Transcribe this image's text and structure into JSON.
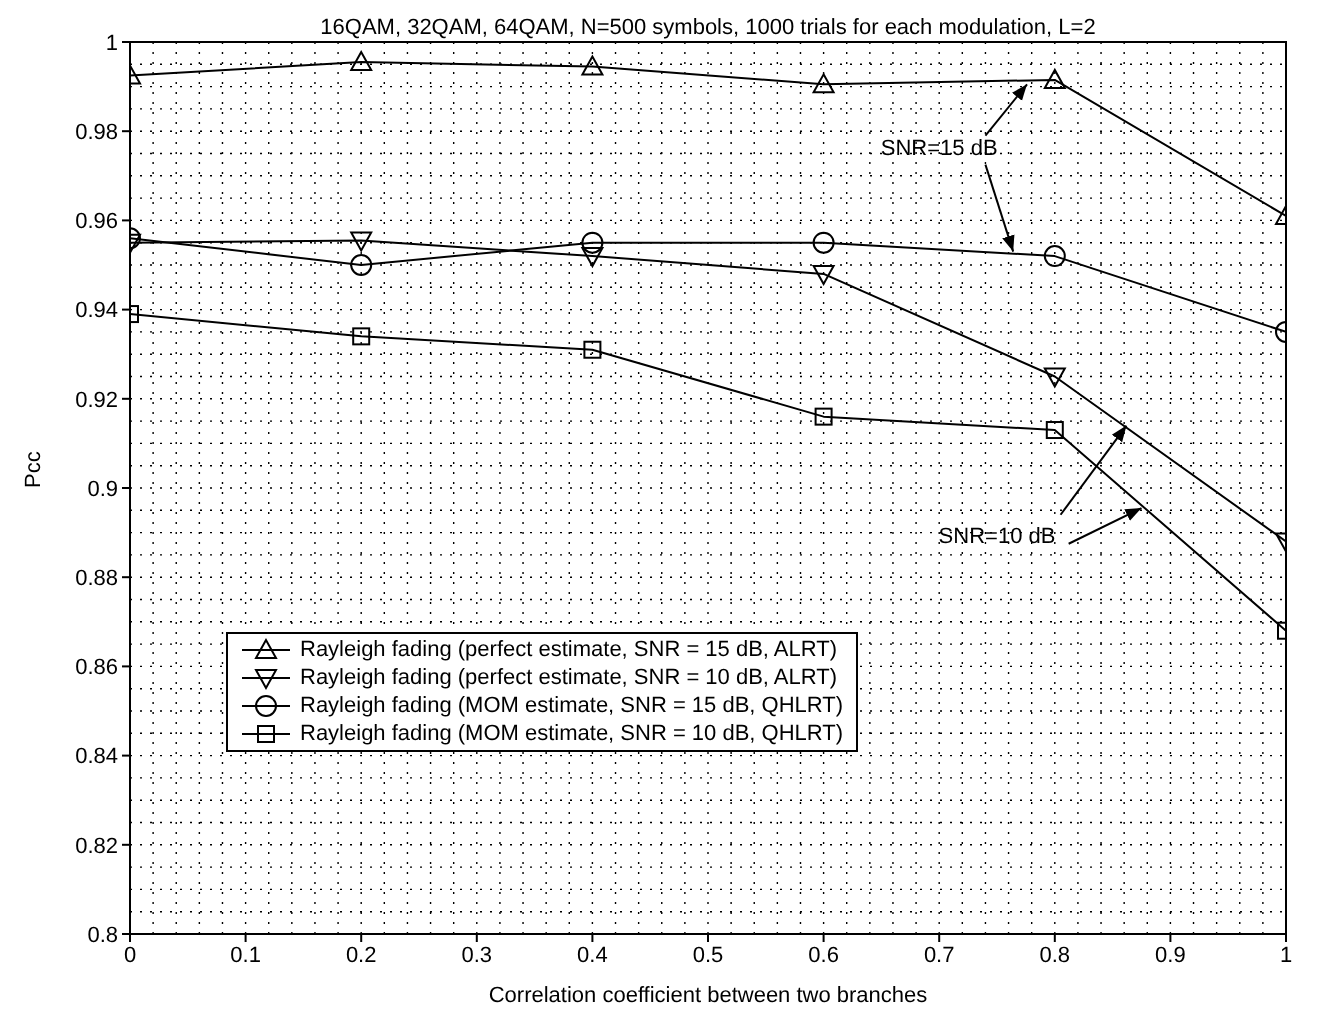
{
  "chart_data": {
    "type": "line",
    "title": "16QAM, 32QAM, 64QAM, N=500 symbols, 1000 trials for each modulation, L=2",
    "xlabel": "Correlation coefficient between two branches",
    "ylabel": "Pcc",
    "x": [
      0,
      0.2,
      0.4,
      0.6,
      0.8,
      1
    ],
    "series": [
      {
        "name": "Rayleigh fading (perfect estimate, SNR = 15 dB, ALRT)",
        "color": "#000000",
        "marker": "triangle",
        "values": [
          0.9925,
          0.9955,
          0.9945,
          0.9905,
          0.9915,
          0.961
        ]
      },
      {
        "name": "Rayleigh fading (perfect estimate, SNR = 10 dB, ALRT)",
        "color": "#000000",
        "marker": "triangle-down",
        "values": [
          0.955,
          0.9555,
          0.952,
          0.948,
          0.925,
          0.888
        ]
      },
      {
        "name": "Rayleigh fading (MOM estimate, SNR = 15 dB, QHLRT)",
        "color": "#000000",
        "marker": "circle",
        "values": [
          0.956,
          0.95,
          0.955,
          0.955,
          0.952,
          0.935
        ]
      },
      {
        "name": "Rayleigh fading (MOM estimate, SNR = 10 dB, QHLRT)",
        "color": "#000000",
        "marker": "square",
        "values": [
          0.939,
          0.934,
          0.931,
          0.916,
          0.913,
          0.868
        ]
      }
    ],
    "xlim": [
      0,
      1
    ],
    "xticks": [
      0,
      0.1,
      0.2,
      0.3,
      0.4,
      0.5,
      0.6,
      0.7,
      0.8,
      0.9,
      1
    ],
    "ylim": [
      0.8,
      1
    ],
    "yticks": [
      0.8,
      0.82,
      0.84,
      0.86,
      0.88,
      0.9,
      0.92,
      0.94,
      0.96,
      0.98,
      1
    ],
    "grid": true,
    "legend": "bottom left",
    "line_style": "solid",
    "annotations": [
      {
        "text": "SNR=15 dB",
        "x": 0.776,
        "y": 0.9905
      },
      {
        "text": "SNR=10 dB",
        "x": 0.862,
        "y": 0.914
      }
    ]
  }
}
